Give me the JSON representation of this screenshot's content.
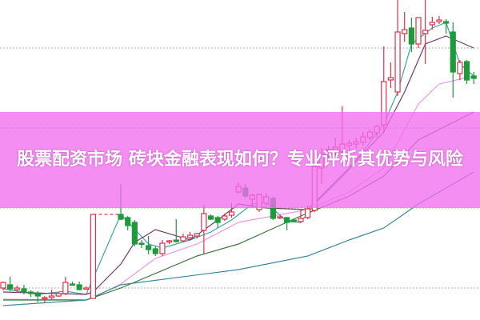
{
  "title": "股票配资市场 砖块金融表现如何？专业评析其优势与风险",
  "colors": {
    "up": "#e0304a",
    "down": "#1e9a3a",
    "banner": "#f26eee",
    "grid": "#999999",
    "gap_line": "#c0404a"
  },
  "chart_data": {
    "type": "candlestick",
    "grid": "horizontal-dotted",
    "grid_levels": [
      4,
      14,
      24,
      34
    ],
    "ylim": [
      0,
      40
    ],
    "candles": [
      [
        4.0,
        4.8,
        3.7,
        4.7
      ],
      [
        4.4,
        5.4,
        3.6,
        3.9
      ],
      [
        3.8,
        4.3,
        3.4,
        4.0
      ],
      [
        3.9,
        4.4,
        3.2,
        3.5
      ],
      [
        3.5,
        3.7,
        2.9,
        3.3
      ],
      [
        3.3,
        3.6,
        2.2,
        3.0
      ],
      [
        2.7,
        3.0,
        2.1,
        2.8
      ],
      [
        2.8,
        3.8,
        2.6,
        3.0
      ],
      [
        3.0,
        3.5,
        2.9,
        3.3
      ],
      [
        3.3,
        5.4,
        3.1,
        4.7
      ],
      [
        4.5,
        4.8,
        4.3,
        4.4
      ],
      [
        4.4,
        4.8,
        3.7,
        3.8
      ],
      [
        3.9,
        4.2,
        3.8,
        4.0
      ],
      [
        2.7,
        13.2,
        2.7,
        13.2
      ],
      null,
      null,
      null,
      [
        13.2,
        17.0,
        12.5,
        12.6
      ],
      [
        12.8,
        13.0,
        11.2,
        11.8
      ],
      [
        12.2,
        12.5,
        9.2,
        9.5
      ],
      [
        9.6,
        10.0,
        9.0,
        9.5
      ],
      [
        9.3,
        10.5,
        8.2,
        8.8
      ],
      [
        8.9,
        9.2,
        8.0,
        8.3
      ],
      [
        8.3,
        10.0,
        8.0,
        9.6
      ],
      [
        9.8,
        10.0,
        9.5,
        9.9
      ],
      [
        10.0,
        12.6,
        9.7,
        9.8
      ],
      [
        9.9,
        10.8,
        9.7,
        10.4
      ],
      [
        10.3,
        11.0,
        10.1,
        10.6
      ],
      [
        10.5,
        10.9,
        10.2,
        10.8
      ],
      [
        11.2,
        14.4,
        8.3,
        13.3
      ],
      [
        13.0,
        13.2,
        12.5,
        12.6
      ],
      [
        12.8,
        13.0,
        11.5,
        12.2
      ],
      [
        12.6,
        13.3,
        12.4,
        13.0
      ],
      [
        13.1,
        14.6,
        12.8,
        13.5
      ],
      [
        16.0,
        17.2,
        15.8,
        16.7
      ],
      [
        16.5,
        17.0,
        15.2,
        15.5
      ],
      [
        15.1,
        15.8,
        14.0,
        15.6
      ],
      [
        13.8,
        15.8,
        13.5,
        15.7
      ],
      [
        14.6,
        15.8,
        14.0,
        15.4
      ],
      [
        15.2,
        15.4,
        12.5,
        12.7
      ],
      [
        12.8,
        13.2,
        12.6,
        12.9
      ],
      [
        12.8,
        12.9,
        11.2,
        12.2
      ],
      [
        12.5,
        12.7,
        12.2,
        12.4
      ],
      [
        12.3,
        13.9,
        12.1,
        12.7
      ],
      [
        12.8,
        14.3,
        12.6,
        13.9
      ],
      [
        13.7,
        20.8,
        13.5,
        19.2
      ],
      [
        19.0,
        21.5,
        17.0,
        20.7
      ],
      [
        20.5,
        21.8,
        20.0,
        21.3
      ],
      [
        21.2,
        22.8,
        20.6,
        21.6
      ],
      [
        21.0,
        26.7,
        20.5,
        22.0
      ],
      [
        21.8,
        22.5,
        21.2,
        22.1
      ],
      [
        22.0,
        22.8,
        21.5,
        22.3
      ],
      [
        22.2,
        23.5,
        21.8,
        22.9
      ],
      [
        22.8,
        23.8,
        22.5,
        23.5
      ],
      [
        23.4,
        24.4,
        22.8,
        24.2
      ],
      [
        24.4,
        34.2,
        23.5,
        29.8
      ],
      [
        30.0,
        32.2,
        29.0,
        30.3
      ],
      [
        28.5,
        40.0,
        28.0,
        36.0
      ],
      [
        35.8,
        38.5,
        34.8,
        36.3
      ],
      [
        36.5,
        37.8,
        33.5,
        34.5
      ],
      [
        34.5,
        37.8,
        34.0,
        37.8
      ],
      [
        35.8,
        40.0,
        32.0,
        36.2
      ],
      [
        36.9,
        37.9,
        36.3,
        37.2
      ],
      [
        37.3,
        38.0,
        37.0,
        37.5
      ],
      [
        37.3,
        37.6,
        35.8,
        37.1
      ],
      [
        36.0,
        37.2,
        27.8,
        31.0
      ],
      [
        30.8,
        32.5,
        30.0,
        32.2
      ],
      [
        32.3,
        32.5,
        29.5,
        30.0
      ],
      [
        30.5,
        31.0,
        29.5,
        30.2
      ]
    ],
    "moving_averages": [
      {
        "color": "#3aa6a6",
        "points": [
          [
            0,
            3.9
          ],
          [
            5,
            3.2
          ],
          [
            9,
            3.6
          ],
          [
            12,
            3.2
          ],
          [
            17,
            13.2
          ],
          [
            21,
            9.5
          ],
          [
            23,
            9.0
          ],
          [
            27,
            10.0
          ],
          [
            30,
            11.0
          ],
          [
            33,
            12.5
          ],
          [
            36,
            14.5
          ],
          [
            38,
            14.7
          ],
          [
            41,
            12.3
          ],
          [
            43,
            12.2
          ],
          [
            45,
            14.5
          ],
          [
            50,
            18.8
          ],
          [
            55,
            24.5
          ],
          [
            57,
            28.5
          ],
          [
            59,
            34.5
          ],
          [
            62,
            36.5
          ],
          [
            64,
            37.2
          ],
          [
            66,
            32.0
          ],
          [
            68,
            30.5
          ]
        ]
      },
      {
        "color": "#7a3a6a",
        "points": [
          [
            0,
            3.5
          ],
          [
            12,
            3.2
          ],
          [
            13,
            3.5
          ],
          [
            17,
            7.0
          ],
          [
            19,
            9.7
          ],
          [
            22,
            11.3
          ],
          [
            27,
            10.0
          ],
          [
            31,
            12.5
          ],
          [
            34,
            14.5
          ],
          [
            38,
            14.0
          ],
          [
            44,
            13.8
          ],
          [
            50,
            19.0
          ],
          [
            55,
            23.5
          ],
          [
            58,
            28.5
          ],
          [
            61,
            34.5
          ],
          [
            64,
            35.5
          ],
          [
            68,
            34.0
          ]
        ]
      },
      {
        "color": "#e89ae8",
        "points": [
          [
            0,
            2.6
          ],
          [
            12,
            2.5
          ],
          [
            13,
            2.8
          ],
          [
            17,
            4.5
          ],
          [
            22,
            7.7
          ],
          [
            28,
            9.5
          ],
          [
            34,
            12.2
          ],
          [
            44,
            13.8
          ],
          [
            50,
            16.0
          ],
          [
            55,
            19.0
          ],
          [
            60,
            27.0
          ],
          [
            63,
            29.5
          ],
          [
            68,
            30.5
          ]
        ]
      },
      {
        "color": "#3a7a3a",
        "points": [
          [
            0,
            2.5
          ],
          [
            12,
            2.5
          ],
          [
            17,
            4.0
          ],
          [
            28,
            8.0
          ],
          [
            34,
            9.5
          ],
          [
            43,
            13.0
          ],
          [
            50,
            15.5
          ],
          [
            55,
            18.0
          ],
          [
            60,
            22.5
          ],
          [
            68,
            26.0
          ]
        ]
      },
      {
        "color": "#3a8aa0",
        "points": [
          [
            0,
            1.8
          ],
          [
            12,
            2.5
          ],
          [
            17,
            4.4
          ],
          [
            34,
            6.3
          ],
          [
            44,
            8.0
          ],
          [
            50,
            10.0
          ],
          [
            55,
            11.5
          ],
          [
            60,
            14.5
          ],
          [
            68,
            18.5
          ]
        ]
      }
    ]
  }
}
